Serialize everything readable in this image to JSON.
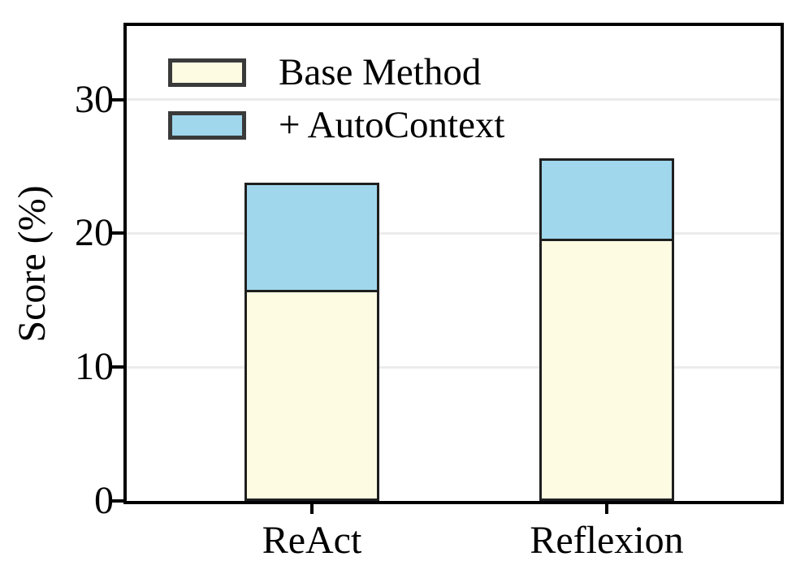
{
  "chart_data": {
    "type": "bar",
    "stacked": true,
    "title": "",
    "ylabel": "Score (%)",
    "xlabel": "",
    "categories": [
      "ReAct",
      "Reflexion"
    ],
    "series": [
      {
        "name": "Base Method",
        "role": "base",
        "values": [
          15.6,
          19.4
        ],
        "color": "#FDFCE3"
      },
      {
        "name": "+ AutoContext",
        "role": "stacked-top",
        "totals": [
          23.8,
          25.6
        ],
        "increments": [
          8.2,
          6.2
        ],
        "color": "#A0D7EC"
      }
    ],
    "ylim": [
      0,
      35.5
    ],
    "yticks": [
      0,
      10,
      20,
      30
    ],
    "grid": "horizontal-light",
    "legend_position": "upper-left-inside",
    "colors": {
      "base_fill": "#FDFCE3",
      "autocontext_fill": "#A0D7EC",
      "bar_edge": "#1f1f1f",
      "legend_swatch_edge": "#3a3a3a",
      "gridline": "#ebebeb",
      "axis": "#000000",
      "background": "#ffffff",
      "text": "#000000"
    }
  },
  "legend": {
    "items": [
      {
        "label": "Base Method"
      },
      {
        "label": "+ AutoContext"
      }
    ]
  }
}
